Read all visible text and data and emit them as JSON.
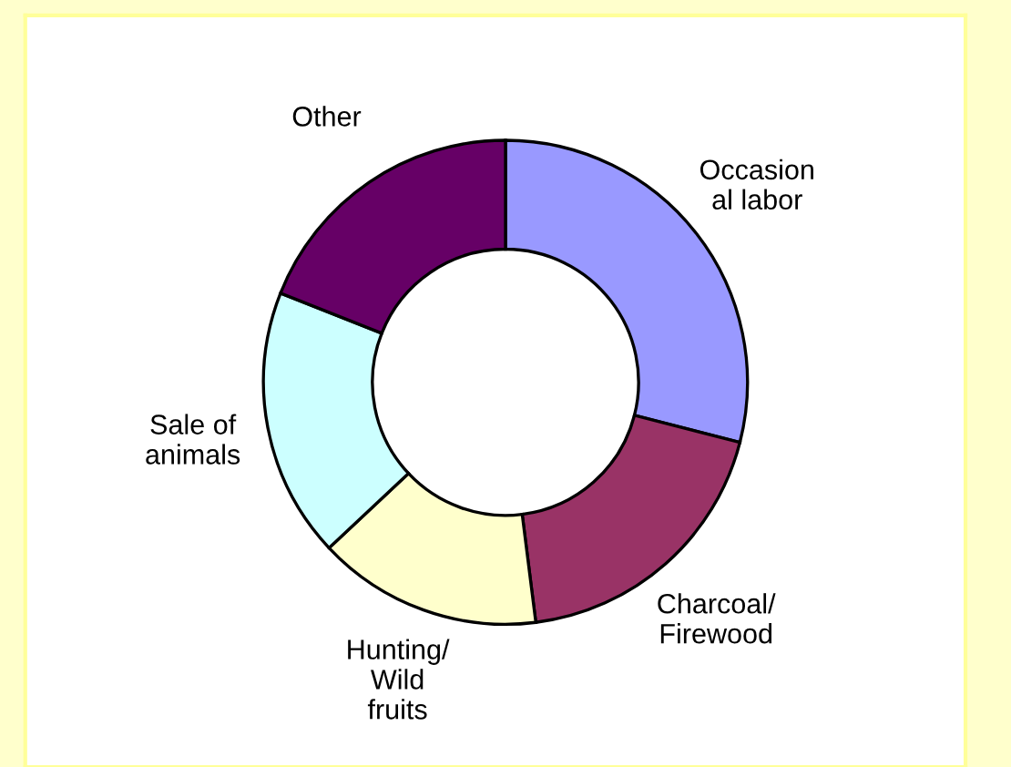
{
  "chart_data": {
    "type": "donut",
    "categories": [
      "Occasion\nal labor",
      "Charcoal/\nFirewood",
      "Hunting/\nWild\nfruits",
      "Sale of\nanimals",
      "Other"
    ],
    "values": [
      29,
      19,
      15,
      18,
      19
    ],
    "colors": [
      "#9999ff",
      "#993366",
      "#ffffcc",
      "#ccffff",
      "#660066"
    ],
    "legend": false
  }
}
